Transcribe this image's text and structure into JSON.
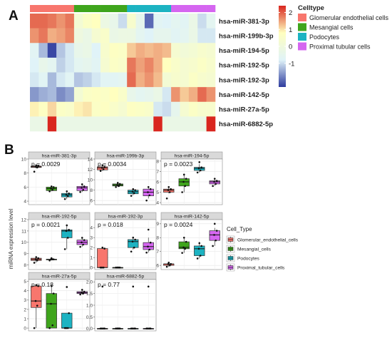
{
  "panels": {
    "a": "A",
    "b": "B"
  },
  "colors": {
    "Glomerular endothelial cells": "#F8766D",
    "Mesangial cells": "#3FA51C",
    "Podocytes": "#1CB3C2",
    "Proximal tubular cells": "#D566F0"
  },
  "chart_data": [
    {
      "type": "heatmap",
      "rows": [
        "hsa-miR-381-3p",
        "hsa-miR-199b-3p",
        "hsa-miR-194-5p",
        "hsa-miR-192-5p",
        "hsa-miR-192-3p",
        "hsa-miR-142-5p",
        "hsa-miR-27a-5p",
        "hsa-miR-6882-5p"
      ],
      "column_groups": [
        "Glomerular endothelial cells",
        "Glomerular endothelial cells",
        "Glomerular endothelial cells",
        "Glomerular endothelial cells",
        "Glomerular endothelial cells",
        "Mesangial cells",
        "Mesangial cells",
        "Mesangial cells",
        "Mesangial cells",
        "Mesangial cells",
        "Mesangial cells",
        "Podocytes",
        "Podocytes",
        "Podocytes",
        "Podocytes",
        "Podocytes",
        "Proximal tubular cells",
        "Proximal tubular cells",
        "Proximal tubular cells",
        "Proximal tubular cells",
        "Proximal tubular cells"
      ],
      "values": [
        [
          1.9,
          1.9,
          1.8,
          1.6,
          1.8,
          0.2,
          0.6,
          0.8,
          -0.2,
          -0.4,
          -1.0,
          0.4,
          -0.5,
          -2.0,
          -0.7,
          -0.8,
          -0.6,
          -0.7,
          -0.3,
          -1.0,
          -0.6
        ],
        [
          1.6,
          1.8,
          1.4,
          1.5,
          1.7,
          -0.1,
          -0.3,
          0.3,
          0.5,
          -0.3,
          -0.2,
          -0.2,
          -0.6,
          -0.8,
          -0.5,
          -0.5,
          -0.7,
          -0.6,
          -0.3,
          -0.9,
          -0.9
        ],
        [
          -0.7,
          -1.3,
          -2.3,
          -1.2,
          -0.9,
          -0.4,
          -0.3,
          -0.8,
          0.4,
          0.7,
          0.6,
          1.2,
          1.4,
          1.3,
          1.4,
          1.3,
          0.3,
          0.1,
          0.2,
          0.4,
          0.3
        ],
        [
          -0.8,
          -0.4,
          -0.6,
          -1.1,
          -0.9,
          -0.6,
          -0.5,
          -0.7,
          0.3,
          0.6,
          0.5,
          1.8,
          1.5,
          1.7,
          1.4,
          0.8,
          0.5,
          0.3,
          0.4,
          0.6,
          0.4
        ],
        [
          -0.9,
          -0.7,
          -1.3,
          -0.9,
          -0.7,
          -1.2,
          -1.1,
          -0.9,
          -0.7,
          -0.7,
          -0.6,
          1.9,
          1.4,
          1.6,
          1.3,
          0.2,
          0.4,
          0.3,
          0.6,
          0.4,
          0.3
        ],
        [
          -1.6,
          -1.4,
          -1.3,
          -1.7,
          -1.5,
          0.2,
          0.6,
          0.7,
          0.6,
          0.8,
          0.5,
          -0.4,
          -0.6,
          -0.5,
          -0.3,
          -0.9,
          1.6,
          1.2,
          1.4,
          1.9,
          1.6
        ],
        [
          0.9,
          0.7,
          1.1,
          0.6,
          0.5,
          0.9,
          1.0,
          0.6,
          0.7,
          0.5,
          0.3,
          0.7,
          0.6,
          0.5,
          -0.9,
          -1.0,
          -0.5,
          0.3,
          0.6,
          0.4,
          0.4
        ],
        [
          -0.3,
          -0.3,
          2.4,
          -0.3,
          -0.3,
          -0.3,
          -0.3,
          -0.3,
          -0.3,
          -0.3,
          -0.3,
          -0.3,
          -0.3,
          -0.3,
          2.4,
          -0.3,
          -0.3,
          -0.3,
          -0.3,
          -0.3,
          2.4
        ]
      ],
      "legend": {
        "title": "Celltype",
        "entries": [
          "Glomerular endothelial cells",
          "Mesangial cells",
          "Podocytes",
          "Proximal tubular cells"
        ]
      },
      "colorbar": {
        "ticks": [
          2,
          1,
          0,
          -1
        ],
        "range": [
          -2.4,
          2.4
        ],
        "colors": [
          "#2E3C9E",
          "#E0F3F8",
          "#FFFFBF",
          "#D9261F"
        ]
      }
    },
    {
      "type": "box",
      "ylabel": "miRNA expression level",
      "groups": [
        "Glomerular_endothelial_cells",
        "Mesangial_cells",
        "Podocytes",
        "Proximal_tubular_cells"
      ],
      "legend": {
        "title": "Cell_Type",
        "entries": [
          "Glomerular_endothelial_cells",
          "Mesangial_cells",
          "Podocytes",
          "Proximal_tubular_cells"
        ]
      },
      "facets": [
        {
          "title": "hsa-miR-381-3p",
          "p": "p = 0.0029",
          "ylim": [
            3.5,
            10
          ],
          "ticks": [
            4,
            6,
            8,
            10
          ],
          "boxes": [
            [
              8.7,
              8.8,
              8.9,
              9.0,
              9.1
            ],
            [
              5.4,
              5.5,
              5.8,
              6.0,
              6.1
            ],
            [
              4.3,
              4.6,
              4.9,
              5.1,
              5.4
            ],
            [
              5.3,
              5.5,
              5.9,
              6.1,
              6.5
            ]
          ],
          "points": [
            [
              8.2,
              8.8,
              8.9,
              9.0,
              9.1
            ],
            [
              5.4,
              5.6,
              5.8,
              6.0,
              6.1
            ],
            [
              4.3,
              4.7,
              4.9,
              5.1,
              5.4
            ],
            [
              5.3,
              5.6,
              5.9,
              6.1,
              6.4
            ]
          ]
        },
        {
          "title": "hsa-miR-199b-3p",
          "p": "p = 0.0034",
          "ylim": [
            5.2,
            14
          ],
          "ticks": [
            6,
            8,
            10,
            12,
            14
          ],
          "boxes": [
            [
              11.7,
              11.9,
              12.3,
              12.5,
              12.8
            ],
            [
              8.6,
              8.8,
              9.0,
              9.2,
              9.4
            ],
            [
              7.0,
              7.3,
              7.7,
              8.0,
              8.2
            ],
            [
              6.4,
              6.9,
              7.6,
              8.2,
              8.6
            ]
          ],
          "points": [
            [
              11.7,
              12.0,
              12.3,
              12.5,
              12.8
            ],
            [
              8.6,
              8.8,
              9.0,
              9.2,
              9.4
            ],
            [
              6.9,
              7.4,
              7.7,
              8.0,
              8.2
            ],
            [
              6.0,
              7.0,
              7.6,
              8.2,
              8.6
            ]
          ]
        },
        {
          "title": "hsa-miR-194-5p",
          "p": "p = 0.0023",
          "ylim": [
            3.8,
            8.2
          ],
          "ticks": [
            4,
            5,
            6,
            7,
            8
          ],
          "boxes": [
            [
              4.9,
              5.0,
              5.2,
              5.3,
              5.5
            ],
            [
              5.0,
              5.6,
              6.0,
              6.3,
              6.7
            ],
            [
              6.9,
              7.1,
              7.3,
              7.4,
              7.7
            ],
            [
              5.6,
              5.8,
              6.0,
              6.1,
              6.3
            ]
          ],
          "points": [
            [
              4.4,
              5.0,
              5.2,
              5.3,
              5.5
            ],
            [
              5.0,
              5.6,
              6.0,
              6.3,
              6.7
            ],
            [
              6.9,
              7.1,
              7.3,
              7.4,
              7.9
            ],
            [
              5.6,
              5.8,
              6.0,
              6.1,
              6.3
            ]
          ]
        },
        {
          "title": "hsa-miR-192-5p",
          "p": "p = 0.0021",
          "ylim": [
            7.6,
            12
          ],
          "ticks": [
            8,
            9,
            10,
            11,
            12
          ],
          "boxes": [
            [
              8.2,
              8.4,
              8.5,
              8.6,
              8.7
            ],
            [
              8.4,
              8.5,
              8.5,
              8.5,
              8.6
            ],
            [
              9.4,
              10.4,
              11.0,
              11.1,
              11.5
            ],
            [
              9.6,
              9.8,
              10.0,
              10.2,
              10.4
            ]
          ],
          "points": [
            [
              8.2,
              8.4,
              8.5,
              8.6,
              8.7
            ],
            [
              8.4,
              8.5,
              8.5,
              8.5,
              8.6
            ],
            [
              9.4,
              10.4,
              11.0,
              11.1,
              11.5
            ],
            [
              9.6,
              9.8,
              10.0,
              10.2,
              10.4
            ]
          ]
        },
        {
          "title": "hsa-miR-192-3p",
          "p": "p = 0.018",
          "ylim": [
            -0.2,
            4.8
          ],
          "ticks": [
            0,
            1,
            2,
            3,
            4
          ],
          "boxes": [
            [
              0,
              0,
              0,
              1.9,
              2.0
            ],
            [
              0,
              0,
              0,
              0,
              0
            ],
            [
              1.8,
              2.0,
              2.6,
              2.8,
              3.0
            ],
            [
              1.5,
              1.8,
              2.1,
              2.5,
              3.0
            ]
          ],
          "points": [
            [
              0,
              0,
              0,
              1.9,
              2.0
            ],
            [
              0,
              0,
              0,
              0,
              0
            ],
            [
              1.6,
              2.0,
              2.6,
              2.8,
              3.0
            ],
            [
              1.5,
              1.8,
              2.1,
              2.5,
              3.8
            ]
          ]
        },
        {
          "title": "hsa-miR-142-5p",
          "p": "p = 0.0024",
          "ylim": [
            5.7,
            9.3
          ],
          "ticks": [
            6,
            7,
            8,
            9
          ],
          "boxes": [
            [
              5.9,
              6.0,
              6.1,
              6.1,
              6.2
            ],
            [
              6.9,
              7.2,
              7.3,
              7.7,
              8.0
            ],
            [
              6.5,
              6.7,
              7.2,
              7.4,
              7.7
            ],
            [
              7.4,
              7.8,
              8.2,
              8.5,
              8.7
            ]
          ],
          "points": [
            [
              5.9,
              6.0,
              6.1,
              6.1,
              6.2
            ],
            [
              6.9,
              7.2,
              7.3,
              7.7,
              8.0
            ],
            [
              6.5,
              6.7,
              7.2,
              7.4,
              7.6
            ],
            [
              7.4,
              7.8,
              8.2,
              8.5,
              9.0
            ]
          ]
        },
        {
          "title": "hsa-miR-27a-5p",
          "p": "p = 0.18",
          "ylim": [
            -0.3,
            5.2
          ],
          "ticks": [
            0,
            1,
            2,
            3,
            4,
            5
          ],
          "boxes": [
            [
              0,
              2.2,
              2.9,
              4.5,
              4.6
            ],
            [
              0,
              0,
              2.6,
              3.7,
              4.5
            ],
            [
              0,
              0,
              0,
              1.6,
              1.6
            ],
            [
              3.6,
              3.7,
              3.8,
              3.9,
              4.1
            ]
          ],
          "points": [
            [
              0,
              2.4,
              2.9,
              4.5,
              4.6
            ],
            [
              0,
              0.3,
              2.6,
              3.7,
              4.5
            ],
            [
              0,
              0,
              0,
              1.6,
              4.4
            ],
            [
              3.6,
              3.7,
              3.8,
              3.9,
              4.1
            ]
          ]
        },
        {
          "title": "hsa-miR-6882-5p",
          "p": "p = 0.77",
          "ylim": [
            -0.1,
            2.1
          ],
          "ticks": [
            0.0,
            0.5,
            1.0,
            1.5,
            2.0
          ],
          "boxes": [
            [
              0,
              0,
              0,
              0,
              0
            ],
            [
              0,
              0,
              0,
              0,
              0
            ],
            [
              0,
              0,
              0,
              0,
              0
            ],
            [
              0,
              0,
              0,
              0,
              0
            ]
          ],
          "points": [
            [
              0,
              0,
              0,
              0,
              1.8
            ],
            [
              0,
              0,
              0,
              0,
              0
            ],
            [
              0,
              0,
              0,
              0,
              1.8
            ],
            [
              0,
              0,
              0,
              0,
              1.8
            ]
          ]
        }
      ]
    }
  ]
}
